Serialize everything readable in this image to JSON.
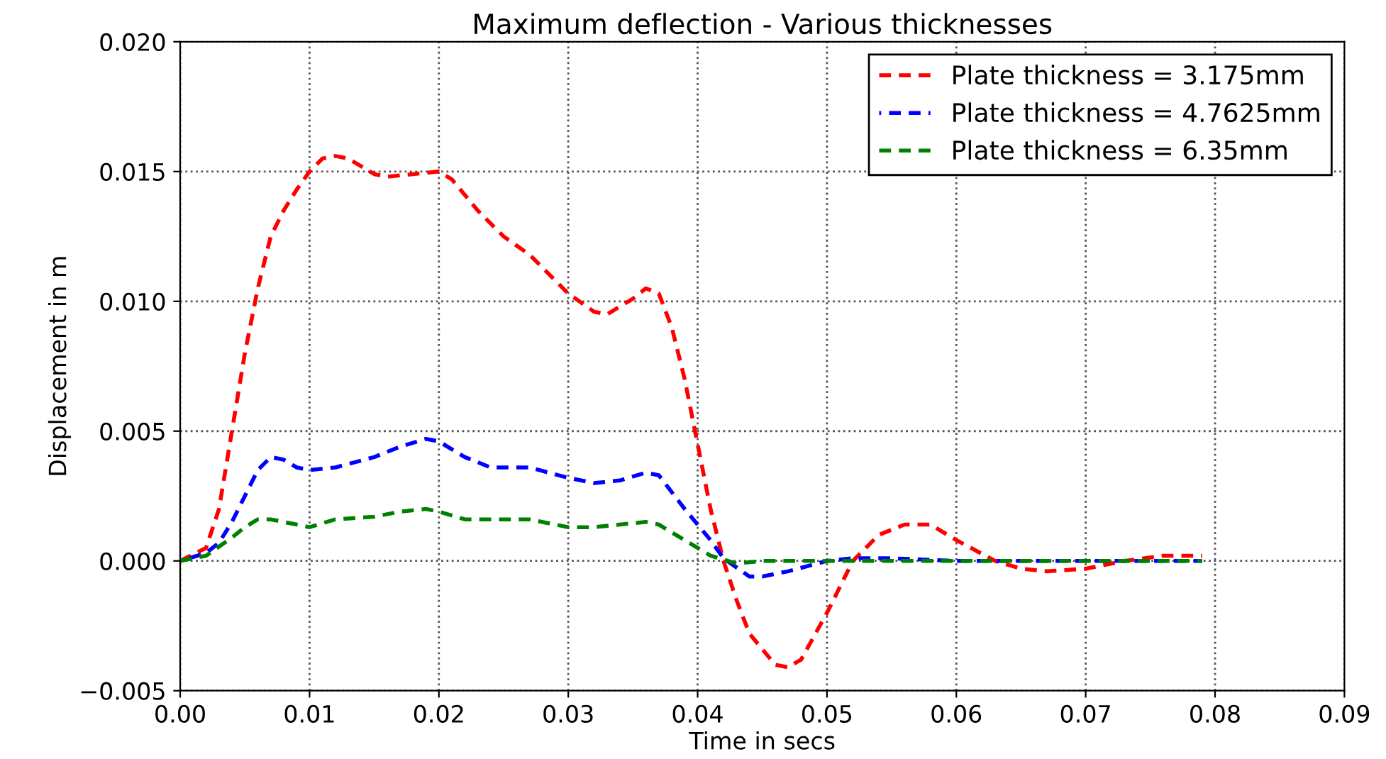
{
  "chart_data": {
    "type": "line",
    "title": "Maximum deflection - Various thicknesses",
    "xlabel": "Time in secs",
    "ylabel": "Displacement in m",
    "xlim": [
      0,
      0.09
    ],
    "xticks": [
      {
        "value": 0,
        "label": "0.00"
      },
      {
        "value": 0.01,
        "label": "0.01"
      },
      {
        "value": 0.02,
        "label": "0.02"
      },
      {
        "value": 0.03,
        "label": "0.03"
      },
      {
        "value": 0.04,
        "label": "0.04"
      },
      {
        "value": 0.05,
        "label": "0.05"
      },
      {
        "value": 0.06,
        "label": "0.06"
      },
      {
        "value": 0.07,
        "label": "0.07"
      },
      {
        "value": 0.08,
        "label": "0.08"
      },
      {
        "value": 0.09,
        "label": "0.09"
      }
    ],
    "ylim": [
      -0.005,
      0.02
    ],
    "yticks": [
      {
        "value": -0.005,
        "label": "−0.005"
      },
      {
        "value": 0,
        "label": "0.000"
      },
      {
        "value": 0.005,
        "label": "0.005"
      },
      {
        "value": 0.01,
        "label": "0.010"
      },
      {
        "value": 0.015,
        "label": "0.015"
      },
      {
        "value": 0.02,
        "label": "0.020"
      }
    ],
    "grid": true,
    "legend": "top right",
    "line_style": "dashed",
    "marker": "none",
    "series": [
      {
        "name": "Plate thickness = 3.175mm",
        "color": "#ff0000",
        "x": [
          0,
          0.002,
          0.003,
          0.004,
          0.005,
          0.006,
          0.007,
          0.008,
          0.009,
          0.01,
          0.011,
          0.012,
          0.013,
          0.015,
          0.016,
          0.018,
          0.02,
          0.021,
          0.023,
          0.025,
          0.027,
          0.029,
          0.03,
          0.032,
          0.033,
          0.035,
          0.036,
          0.037,
          0.038,
          0.039,
          0.04,
          0.041,
          0.042,
          0.043,
          0.044,
          0.046,
          0.047,
          0.048,
          0.05,
          0.052,
          0.054,
          0.056,
          0.058,
          0.06,
          0.063,
          0.065,
          0.067,
          0.07,
          0.073,
          0.076,
          0.079
        ],
        "values": [
          0,
          0.0005,
          0.002,
          0.005,
          0.008,
          0.0105,
          0.0125,
          0.0135,
          0.0143,
          0.015,
          0.0155,
          0.0156,
          0.0155,
          0.0149,
          0.0148,
          0.0149,
          0.015,
          0.0147,
          0.0135,
          0.0125,
          0.0118,
          0.0108,
          0.0103,
          0.0096,
          0.0095,
          0.0101,
          0.0105,
          0.0103,
          0.009,
          0.007,
          0.0045,
          0.002,
          0.0,
          -0.0015,
          -0.0028,
          -0.004,
          -0.0041,
          -0.0038,
          -0.002,
          0.0,
          0.001,
          0.0014,
          0.0014,
          0.0008,
          0.0,
          -0.0003,
          -0.0004,
          -0.0003,
          0.0,
          0.0002,
          0.0002
        ]
      },
      {
        "name": "Plate thickness = 4.7625mm",
        "color": "#0000ff",
        "x": [
          0,
          0.002,
          0.003,
          0.004,
          0.005,
          0.006,
          0.007,
          0.008,
          0.009,
          0.01,
          0.012,
          0.015,
          0.017,
          0.019,
          0.02,
          0.022,
          0.024,
          0.027,
          0.03,
          0.032,
          0.034,
          0.036,
          0.037,
          0.039,
          0.041,
          0.042,
          0.044,
          0.045,
          0.047,
          0.05,
          0.052,
          0.055,
          0.06,
          0.079
        ],
        "values": [
          0,
          0.0003,
          0.0007,
          0.0015,
          0.0025,
          0.0035,
          0.004,
          0.0039,
          0.0036,
          0.0035,
          0.0036,
          0.004,
          0.0044,
          0.0047,
          0.0046,
          0.004,
          0.0036,
          0.0036,
          0.0032,
          0.003,
          0.0031,
          0.0034,
          0.0033,
          0.002,
          0.0008,
          0.0001,
          -0.0006,
          -0.0006,
          -0.0004,
          0.0,
          0.0001,
          0.0001,
          0.0,
          0.0
        ]
      },
      {
        "name": "Plate thickness = 6.35mm",
        "color": "#008000",
        "x": [
          0,
          0.002,
          0.004,
          0.005,
          0.006,
          0.007,
          0.008,
          0.01,
          0.012,
          0.015,
          0.017,
          0.019,
          0.02,
          0.022,
          0.025,
          0.027,
          0.03,
          0.032,
          0.034,
          0.036,
          0.037,
          0.039,
          0.041,
          0.043,
          0.045,
          0.079
        ],
        "values": [
          0,
          0.0002,
          0.0009,
          0.0013,
          0.0016,
          0.0016,
          0.0015,
          0.0013,
          0.0016,
          0.0017,
          0.0019,
          0.002,
          0.0019,
          0.0016,
          0.0016,
          0.0016,
          0.0013,
          0.0013,
          0.0014,
          0.0015,
          0.0014,
          0.0008,
          0.0002,
          -0.0001,
          0.0,
          0.0
        ]
      }
    ]
  }
}
